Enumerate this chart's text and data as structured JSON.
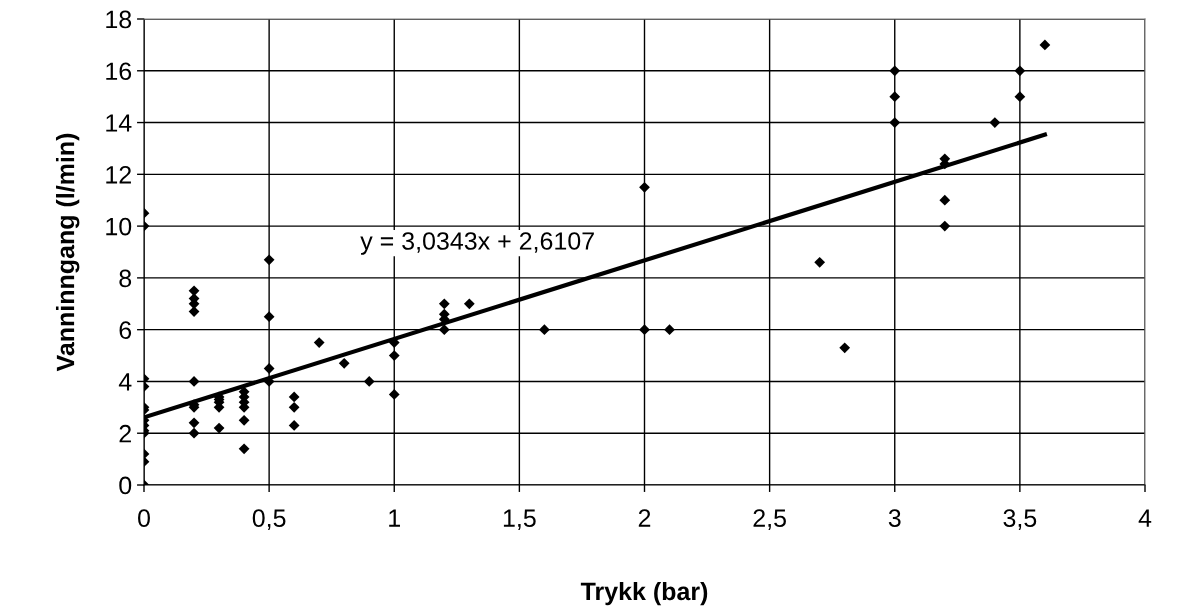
{
  "chart_data": {
    "type": "scatter",
    "xlabel": "Trykk (bar)",
    "ylabel": "Vanninngang (l/min)",
    "xlim": [
      0,
      4
    ],
    "xticks": [
      0,
      {
        "value": 0.5,
        "label": "0,5"
      },
      1,
      {
        "value": 1.5,
        "label": "1,5"
      },
      2,
      {
        "value": 2.5,
        "label": "2,5"
      },
      3,
      {
        "value": 3.5,
        "label": "3,5"
      },
      4
    ],
    "ylim": [
      0,
      18
    ],
    "yticks": [
      0,
      2,
      4,
      6,
      8,
      10,
      12,
      14,
      16,
      18
    ],
    "grid": true,
    "marker": "diamond",
    "annotations": [
      "y = 3,0343x + 2,6107"
    ],
    "series": [
      {
        "color": "#000000",
        "x": [
          0,
          0,
          0,
          0,
          0,
          0,
          0,
          0,
          0,
          0,
          0,
          0,
          0,
          0.2,
          0.2,
          0.2,
          0.2,
          0.2,
          0.2,
          0.2,
          0.2,
          0.2,
          0.3,
          0.3,
          0.3,
          0.3,
          0.3,
          0.4,
          0.4,
          0.4,
          0.4,
          0.4,
          0.4,
          0.5,
          0.5,
          0.5,
          0.5,
          0.6,
          0.6,
          0.6,
          0.7,
          0.8,
          0.9,
          1.0,
          1.0,
          1.0,
          1.2,
          1.2,
          1.2,
          1.2,
          1.3,
          1.6,
          2.0,
          2.0,
          2.1,
          2.7,
          2.8,
          3.0,
          3.0,
          3.0,
          3.2,
          3.2,
          3.2,
          3.2,
          3.4,
          3.5,
          3.5,
          3.6
        ],
        "values": [
          10.5,
          10.0,
          4.1,
          3.8,
          3.0,
          2.9,
          2.5,
          2.3,
          2.1,
          2.0,
          1.2,
          0.9,
          0,
          7.5,
          7.2,
          7.0,
          6.7,
          4.0,
          3.1,
          3.0,
          2.4,
          2.0,
          3.4,
          3.3,
          3.2,
          3.0,
          2.2,
          3.6,
          3.4,
          3.2,
          3.0,
          2.5,
          1.4,
          8.7,
          6.5,
          4.5,
          4.0,
          3.4,
          3.0,
          2.3,
          5.5,
          4.7,
          4.0,
          5.5,
          5.0,
          3.5,
          7.0,
          6.6,
          6.4,
          6.0,
          7.0,
          6.0,
          11.5,
          6.0,
          6.0,
          8.6,
          5.3,
          16,
          15,
          14,
          12.6,
          12.4,
          11,
          10,
          14,
          16,
          15,
          17
        ]
      },
      {
        "type": "line",
        "color": "#000000",
        "marker": "none",
        "line_style": "solid",
        "x": [
          0,
          3.6
        ],
        "values": [
          2.61,
          13.53
        ]
      }
    ]
  }
}
